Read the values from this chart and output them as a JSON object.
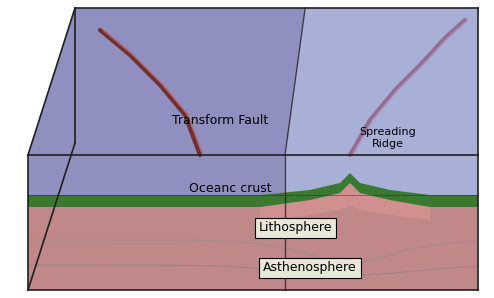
{
  "labels": {
    "transform_fault": "Transform Fault",
    "spreading_ridge": "Spreading\nRidge",
    "oceanic_crust": "Oceanc crust",
    "lithosphere": "Lithosphere",
    "asthenosphere": "Asthenosphere"
  },
  "colors": {
    "blue_ocean": "#a0a8d8",
    "blue_ocean_dark": "#8890c8",
    "blue_ocean_right": "#b0b8e4",
    "mantle_pink": "#c08080",
    "mantle_dark": "#b07070",
    "side_pink": "#b87878",
    "crust_green": "#3a7a30",
    "crust_green2": "#4a8a3a",
    "white": "#ffffff",
    "black": "#000000",
    "label_bg": "#e8e8d8",
    "fault_color": "#804050",
    "ridge_color": "#907080"
  },
  "figsize": [
    4.94,
    2.98
  ],
  "dpi": 100
}
